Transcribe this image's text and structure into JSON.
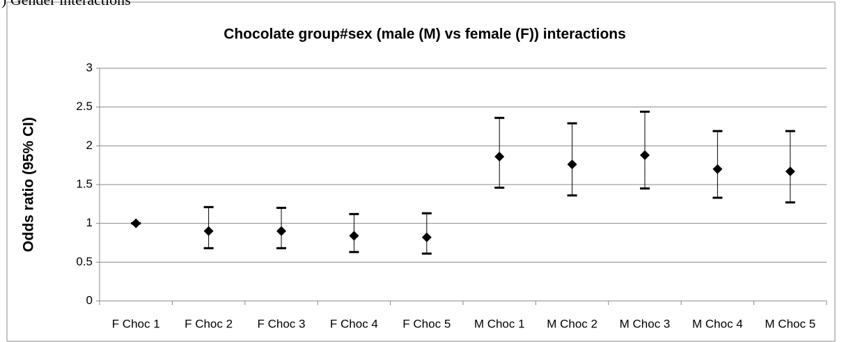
{
  "caption": ") Gender interactions",
  "chart_data": {
    "type": "errorbar",
    "title": "Chocolate group#sex (male (M) vs female (F))  interactions",
    "y_label": "Odds ratio (95% CI)",
    "categories": [
      "F Choc 1",
      "F Choc 2",
      "F Choc 3",
      "F Choc 4",
      "F Choc 5",
      "M Choc 1",
      "M Choc 2",
      "M Choc 3",
      "M Choc 4",
      "M Choc 5"
    ],
    "series": [
      {
        "color": "#000000",
        "values": [
          1.0,
          0.9,
          0.9,
          0.84,
          0.82,
          1.86,
          1.76,
          1.88,
          1.7,
          1.67
        ],
        "lower": [
          1.0,
          0.68,
          0.68,
          0.63,
          0.61,
          1.46,
          1.36,
          1.45,
          1.33,
          1.27
        ],
        "upper": [
          1.0,
          1.21,
          1.2,
          1.12,
          1.13,
          2.36,
          2.29,
          2.44,
          2.19,
          2.19
        ]
      }
    ],
    "ylim": [
      0,
      3
    ],
    "yticks": [
      0,
      0.5,
      1,
      1.5,
      2,
      2.5,
      3
    ],
    "grid": true
  }
}
